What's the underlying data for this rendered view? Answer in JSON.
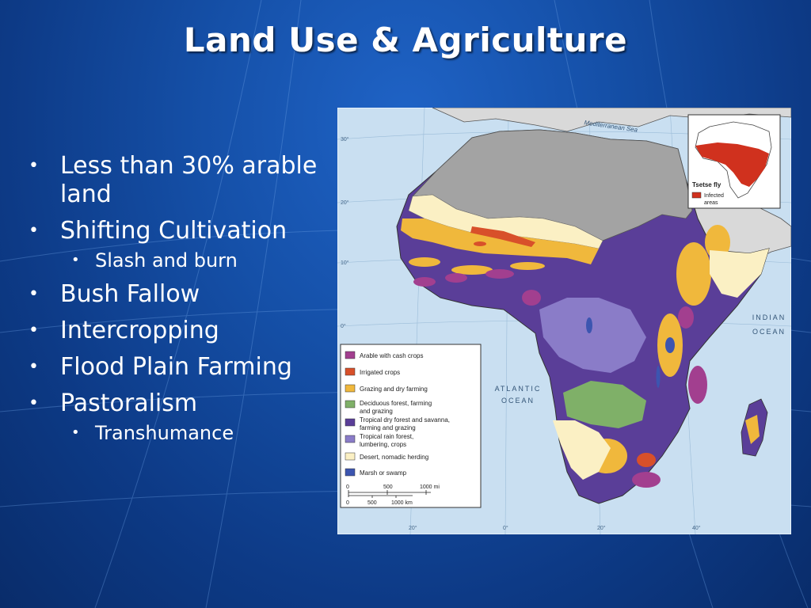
{
  "slide": {
    "title": "Land Use & Agriculture",
    "bullets": [
      {
        "text": "Less than 30% arable land",
        "level": 1
      },
      {
        "text": "Shifting Cultivation",
        "level": 1
      },
      {
        "text": "Slash and burn",
        "level": 2
      },
      {
        "text": "Bush Fallow",
        "level": 1
      },
      {
        "text": "Intercropping",
        "level": 1
      },
      {
        "text": "Flood Plain Farming",
        "level": 1
      },
      {
        "text": "Pastoralism",
        "level": 1
      },
      {
        "text": "Transhumance",
        "level": 2
      }
    ]
  },
  "map": {
    "sea_labels": {
      "mediterranean": "Mediterranean Sea",
      "atlantic_1": "ATLANTIC",
      "atlantic_2": "OCEAN",
      "indian_1": "INDIAN",
      "indian_2": "OCEAN"
    },
    "lat_labels": [
      "30°",
      "20°",
      "10°",
      "0°"
    ],
    "lon_labels": [
      "20°",
      "0°",
      "20°",
      "40°"
    ],
    "inset": {
      "title": "Tsetse fly",
      "legend_label_1": "Infected",
      "legend_label_2": "areas",
      "color": "#d0311e"
    },
    "legend": [
      {
        "lines": [
          "Arable with cash crops"
        ],
        "color": "#a23f8f"
      },
      {
        "lines": [
          "Irrigated crops"
        ],
        "color": "#d8502a"
      },
      {
        "lines": [
          "Grazing and dry farming"
        ],
        "color": "#f0b83c"
      },
      {
        "lines": [
          "Deciduous forest, farming",
          "and grazing"
        ],
        "color": "#7fb068"
      },
      {
        "lines": [
          "Tropical dry forest and savanna,",
          "farming and grazing"
        ],
        "color": "#5a3e98"
      },
      {
        "lines": [
          "Tropical rain forest,",
          "lumbering, crops"
        ],
        "color": "#8a7cc8"
      },
      {
        "lines": [
          "Desert, nomadic herding"
        ],
        "color": "#fbf0c4"
      },
      {
        "lines": [
          "Marsh or swamp"
        ],
        "color": "#3c55b0"
      }
    ],
    "scale": {
      "mi_ticks": [
        "0",
        "500",
        "1000 mi"
      ],
      "km_ticks": [
        "0",
        "500",
        "1000 km"
      ]
    },
    "colors": {
      "ocean": "#c9dff1",
      "north_africa": "#a3a3a3",
      "land_outline": "#333333"
    }
  }
}
